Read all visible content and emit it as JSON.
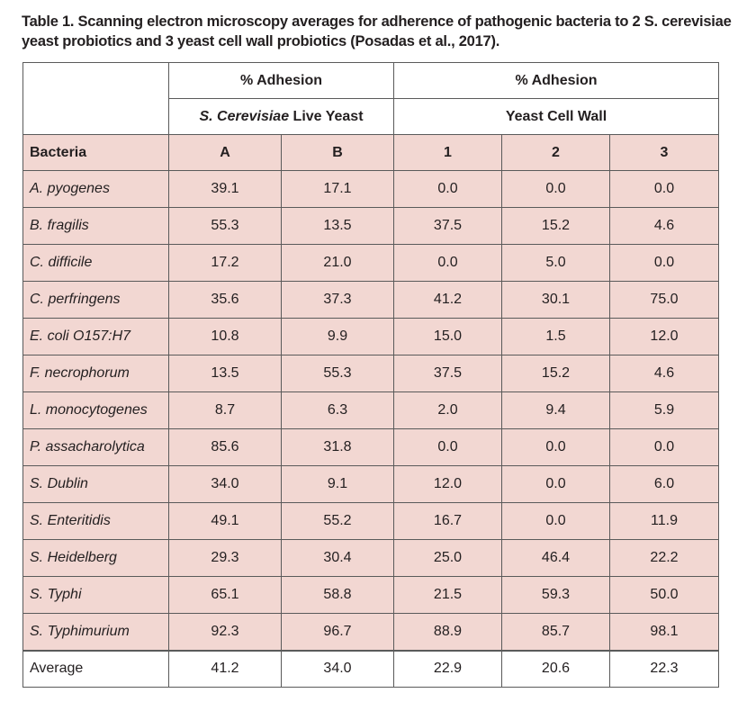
{
  "caption": "Table 1.  Scanning electron microscopy averages for adherence of pathogenic bacteria to 2 S. cerevisiae yeast probiotics and 3 yeast cell wall probiotics (Posadas et al., 2017).",
  "header": {
    "group1": "% Adhesion",
    "group2": "% Adhesion",
    "sub1_italic": "S. Cerevisiae",
    "sub1_rest": " Live Yeast",
    "sub2": "Yeast Cell Wall",
    "col_bacteria": "Bacteria",
    "cols": [
      "A",
      "B",
      "1",
      "2",
      "3"
    ]
  },
  "rows": [
    {
      "bacteria": "A. pyogenes",
      "values": [
        "39.1",
        "17.1",
        "0.0",
        "0.0",
        "0.0"
      ]
    },
    {
      "bacteria": "B. fragilis",
      "values": [
        "55.3",
        "13.5",
        "37.5",
        "15.2",
        "4.6"
      ]
    },
    {
      "bacteria": "C. difficile",
      "values": [
        "17.2",
        "21.0",
        "0.0",
        "5.0",
        "0.0"
      ]
    },
    {
      "bacteria": "C. perfringens",
      "values": [
        "35.6",
        "37.3",
        "41.2",
        "30.1",
        "75.0"
      ]
    },
    {
      "bacteria": "E. coli O157:H7",
      "values": [
        "10.8",
        "9.9",
        "15.0",
        "1.5",
        "12.0"
      ]
    },
    {
      "bacteria": "F. necrophorum",
      "values": [
        "13.5",
        "55.3",
        "37.5",
        "15.2",
        "4.6"
      ]
    },
    {
      "bacteria": "L. monocytogenes",
      "values": [
        "8.7",
        "6.3",
        "2.0",
        "9.4",
        "5.9"
      ]
    },
    {
      "bacteria": "P. assacharolytica",
      "values": [
        "85.6",
        "31.8",
        "0.0",
        "0.0",
        "0.0"
      ]
    },
    {
      "bacteria": "S. Dublin",
      "values": [
        "34.0",
        "9.1",
        "12.0",
        "0.0",
        "6.0"
      ]
    },
    {
      "bacteria": "S. Enteritidis",
      "values": [
        "49.1",
        "55.2",
        "16.7",
        "0.0",
        "11.9"
      ]
    },
    {
      "bacteria": "S. Heidelberg",
      "values": [
        "29.3",
        "30.4",
        "25.0",
        "46.4",
        "22.2"
      ]
    },
    {
      "bacteria": "S. Typhi",
      "values": [
        "65.1",
        "58.8",
        "21.5",
        "59.3",
        "50.0"
      ]
    },
    {
      "bacteria": "S. Typhimurium",
      "values": [
        "92.3",
        "96.7",
        "88.9",
        "85.7",
        "98.1"
      ]
    }
  ],
  "average": {
    "label": "Average",
    "values": [
      "41.2",
      "34.0",
      "22.9",
      "20.6",
      "22.3"
    ]
  },
  "colors": {
    "row_fill": "#f2d7d2",
    "border": "#5a5a5a",
    "text": "#231f20"
  }
}
